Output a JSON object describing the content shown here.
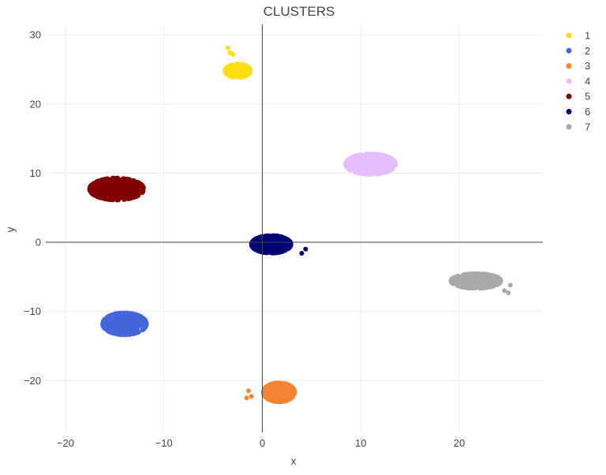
{
  "chart_data": {
    "type": "scatter",
    "title": "CLUSTERS",
    "xlabel": "x",
    "ylabel": "y",
    "xlim": [
      -22,
      28.5
    ],
    "ylim": [
      -27.5,
      31.5
    ],
    "x_ticks": [
      -20,
      -10,
      0,
      10,
      20
    ],
    "y_ticks": [
      -20,
      -10,
      0,
      10,
      20,
      30
    ],
    "grid": true,
    "zero_lines": true,
    "legend": "top-right",
    "series": [
      {
        "name": "1",
        "color": "#FFDD0F",
        "center": [
          -2.5,
          24.8
        ],
        "spread": [
          1.2,
          0.9
        ],
        "extra_points": [
          [
            -3.5,
            28.1
          ],
          [
            -3.3,
            27.4
          ],
          [
            -3.0,
            27.2
          ]
        ]
      },
      {
        "name": "2",
        "color": "#4466DD",
        "center": [
          -14.0,
          -11.8
        ],
        "spread": [
          2.1,
          1.5
        ],
        "extra_points": []
      },
      {
        "name": "3",
        "color": "#F58431",
        "center": [
          1.7,
          -21.7
        ],
        "spread": [
          1.5,
          1.3
        ],
        "extra_points": [
          [
            -1.4,
            -21.5
          ],
          [
            -1.1,
            -22.3
          ],
          [
            -1.6,
            -22.5
          ]
        ]
      },
      {
        "name": "4",
        "color": "#E6BEFF",
        "center": [
          11.0,
          11.3
        ],
        "spread": [
          2.4,
          1.4
        ],
        "extra_points": []
      },
      {
        "name": "5",
        "color": "#800000",
        "center": [
          -14.8,
          7.7
        ],
        "spread": [
          2.6,
          1.5
        ],
        "extra_points": []
      },
      {
        "name": "6",
        "color": "#000075",
        "center": [
          0.9,
          -0.3
        ],
        "spread": [
          1.9,
          1.2
        ],
        "extra_points": [
          [
            4.4,
            -1.0
          ],
          [
            4.0,
            -1.6
          ]
        ]
      },
      {
        "name": "7",
        "color": "#A9A9A9",
        "center": [
          21.7,
          -5.6
        ],
        "spread": [
          2.4,
          1.0
        ],
        "extra_points": [
          [
            25.2,
            -6.2
          ],
          [
            25.0,
            -7.3
          ],
          [
            24.6,
            -7.0
          ]
        ]
      }
    ]
  }
}
